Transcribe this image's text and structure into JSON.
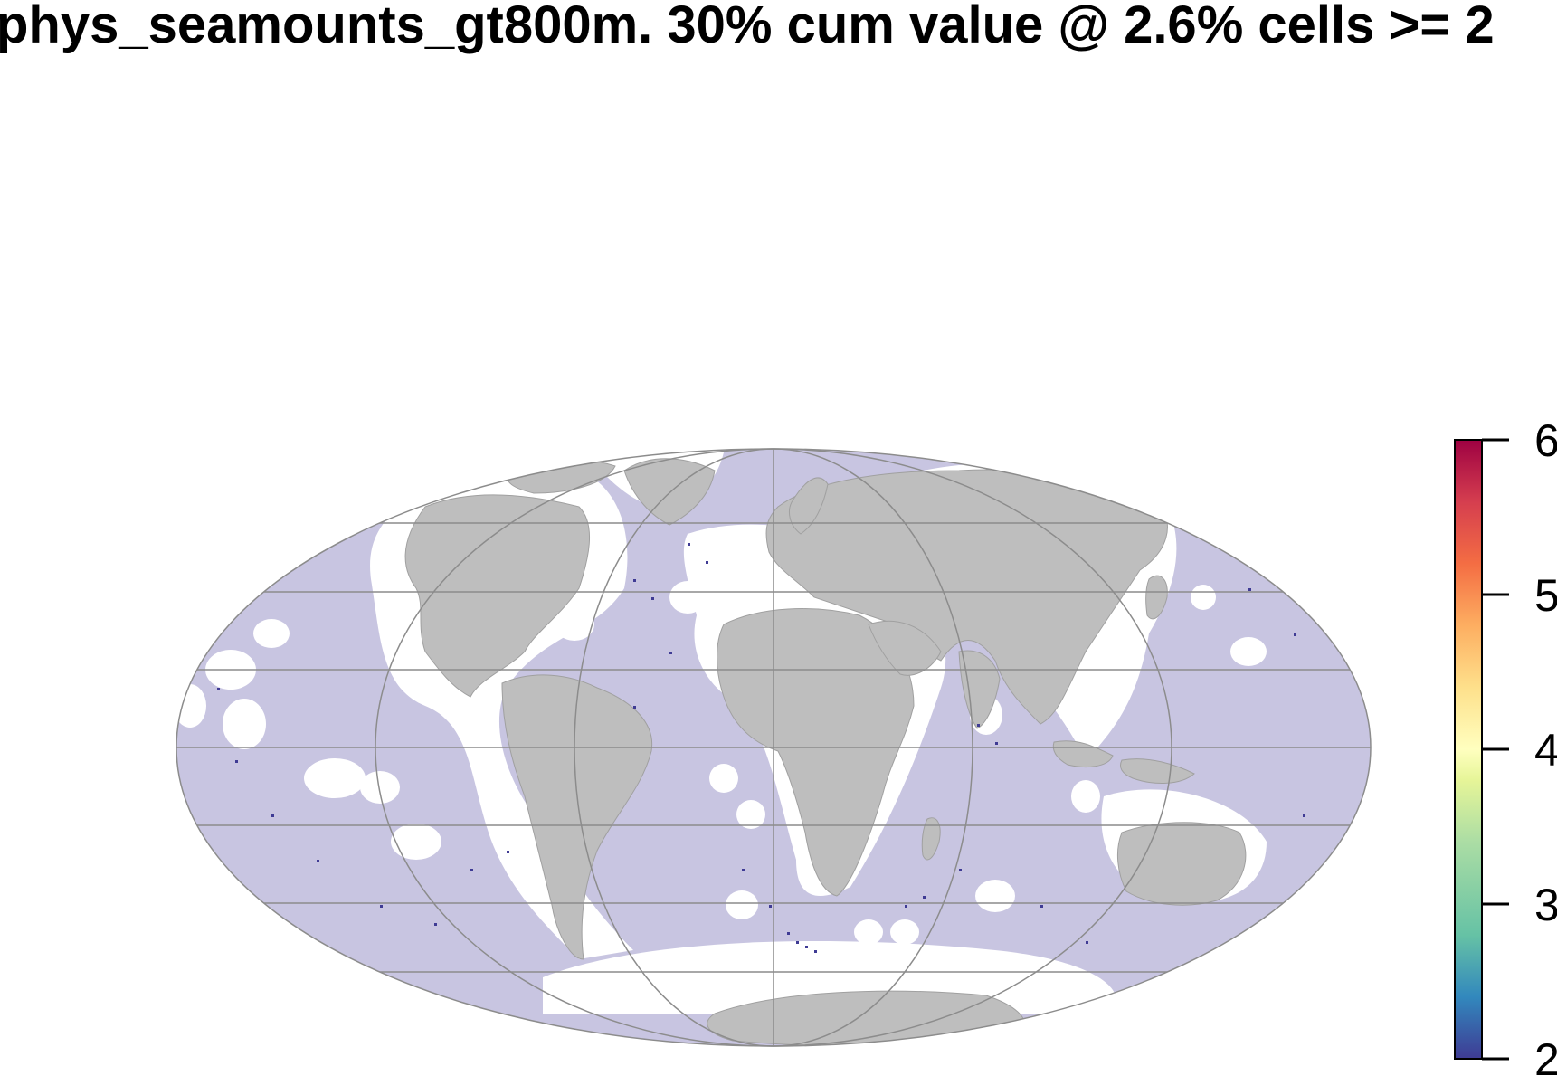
{
  "title": "phys_seamounts_gt800m. 30% cum value @ 2.6% cells >= 2",
  "map": {
    "projection": "Mollweide",
    "ocean_color": "#c8c5e1",
    "land_color": "#bebebe",
    "graticule_color": "#8c8c8c",
    "excluded_color": "#ffffff"
  },
  "legend": {
    "min": 2,
    "max": 6,
    "ticks": [
      "2",
      "3",
      "4",
      "5",
      "6"
    ],
    "palette": [
      "#3f3b94",
      "#3288bd",
      "#66c2a5",
      "#abdda4",
      "#e6f598",
      "#ffffbf",
      "#fee08b",
      "#fdae61",
      "#f46d43",
      "#d53e4f",
      "#9e0142"
    ]
  }
}
